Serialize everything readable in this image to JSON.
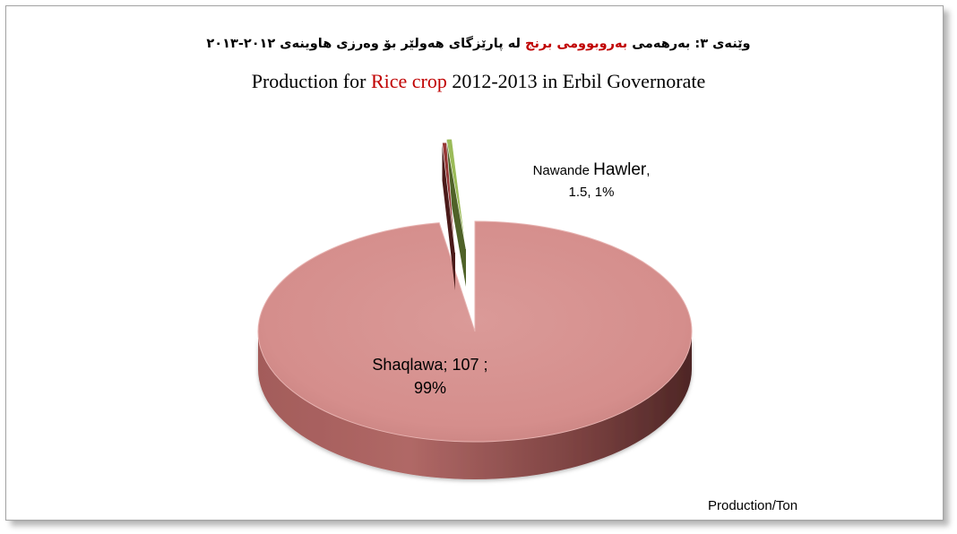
{
  "chart_data": {
    "type": "pie",
    "title_ku_1": "وێنەی ٣: بەرهەمی",
    "title_ku_highlight": "بەروبوومی برنج",
    "title_ku_2": "لە پارێزگای هەولێر بۆ وەرزی هاوینەی ٢٠١٢-٢٠١٣",
    "title_en_1": "Production for",
    "title_en_highlight": "Rice crop",
    "title_en_2": "2012-2013 in Erbil Governorate",
    "unit_label": "Production/Ton",
    "slices": [
      {
        "name_prefix": "Shaqlawa",
        "value": 107,
        "value_text": "107",
        "percent": "99%",
        "color": "#d99694",
        "side_color": "#6b3535"
      },
      {
        "name_prefix": "Nawande",
        "name_main": "Hawler",
        "value": 1.5,
        "value_text": "1.5",
        "percent": "1%",
        "color": "#9bbb59",
        "side_color": "#4f6228"
      },
      {
        "name_prefix": "",
        "value": 0.5,
        "value_text": "",
        "percent": "",
        "color": "#953735",
        "side_color": "#4a1a19"
      }
    ],
    "legend": "none"
  }
}
